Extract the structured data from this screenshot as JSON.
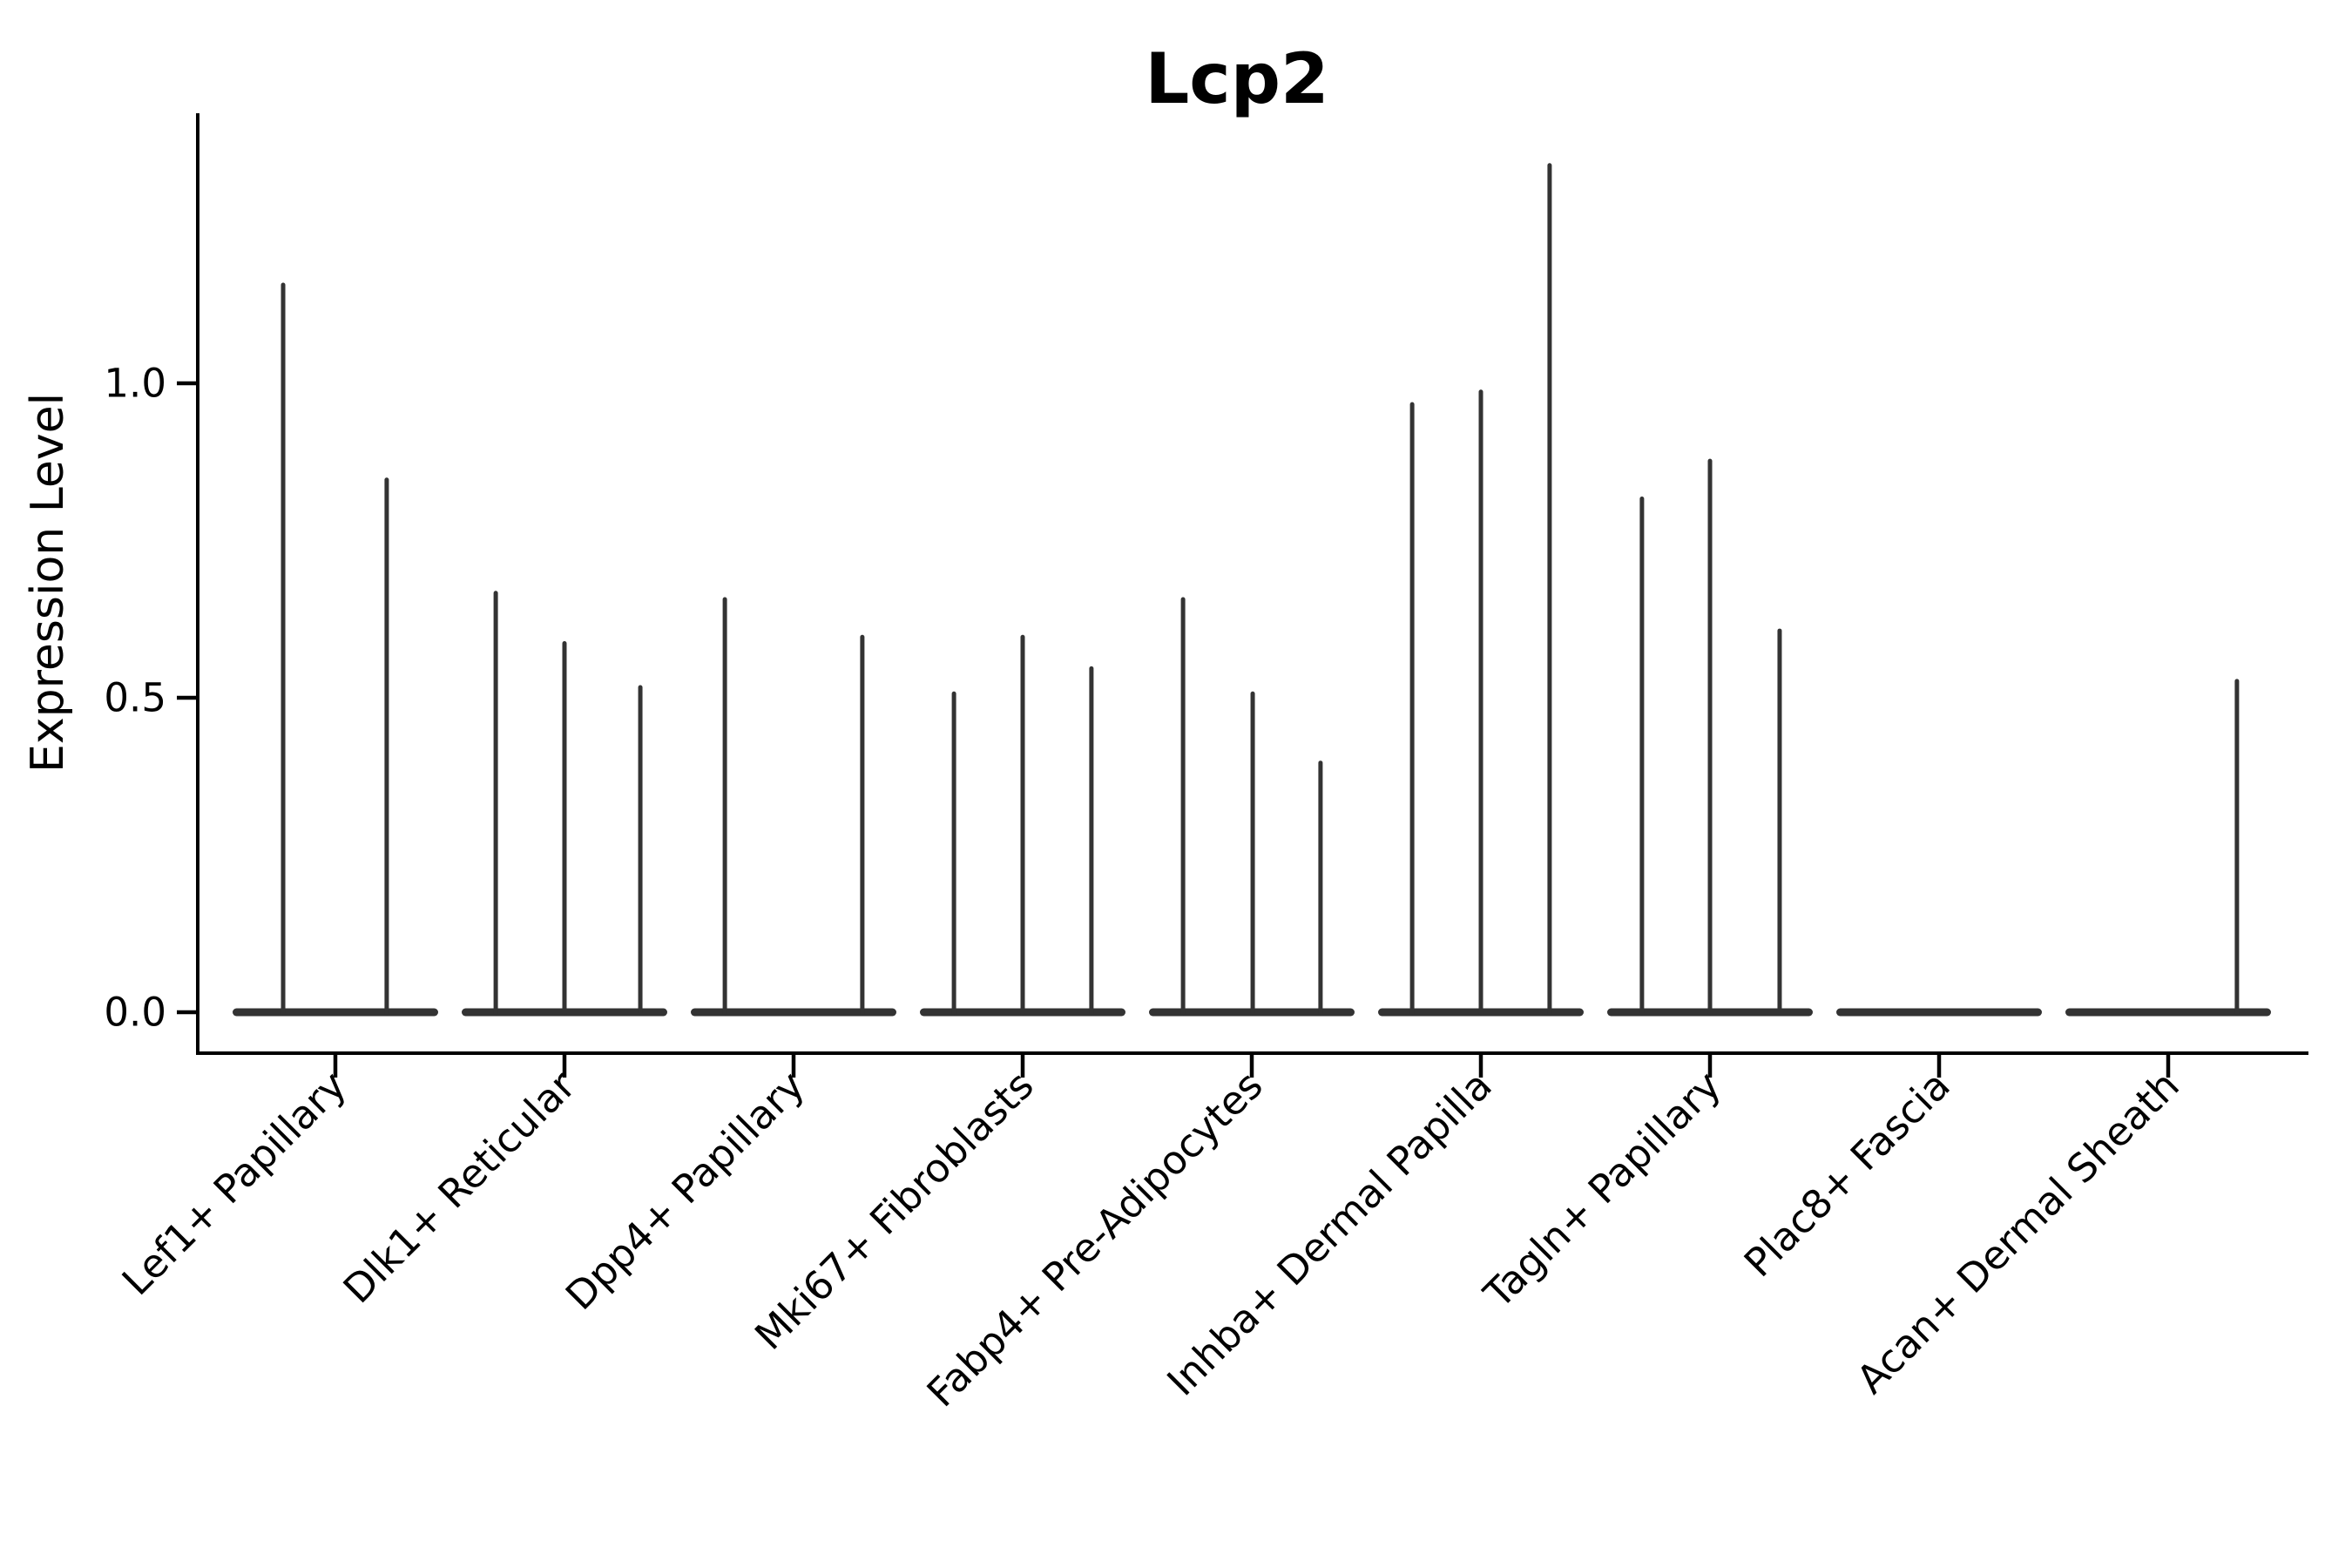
{
  "title": "Lcp2",
  "y_axis": {
    "label": "Expression Level",
    "tick_labels": [
      "0.0",
      "0.5",
      "1.0"
    ],
    "tick_values": [
      0.0,
      0.5,
      1.0
    ]
  },
  "colors": {
    "violin": "#333333",
    "axis": "#000000",
    "text": "#000000",
    "background": "#ffffff"
  },
  "chart_data": {
    "type": "violin",
    "title": "Lcp2",
    "xlabel": "",
    "ylabel": "Expression Level",
    "ylim": [
      0,
      1.43
    ],
    "yticks": [
      0.0,
      0.5,
      1.0
    ],
    "grid": false,
    "legend": null,
    "violin_width": 0.9,
    "categories": [
      "Lef1+ Papillary",
      "Dlk1+ Reticular",
      "Dpp4+ Papillary",
      "Mki67+ Fibroblasts",
      "Fabp4+ Pre-Adipocytes",
      "Inhba+ Dermal Papilla",
      "Tagln+ Papillary",
      "Plac8+ Fascia",
      "Acan+ Dermal Sheath"
    ],
    "series": [
      {
        "name": "Lef1+ Papillary",
        "baseline_value": 0.0,
        "spikes": [
          {
            "offset": -0.228,
            "value": 1.16
          },
          {
            "offset": 0.224,
            "value": 0.85
          }
        ]
      },
      {
        "name": "Dlk1+ Reticular",
        "baseline_value": 0.0,
        "spikes": [
          {
            "offset": -0.3,
            "value": 0.67
          },
          {
            "offset": 0.0,
            "value": 0.59
          },
          {
            "offset": 0.331,
            "value": 0.52
          }
        ]
      },
      {
        "name": "Dpp4+ Papillary",
        "baseline_value": 0.0,
        "spikes": [
          {
            "offset": -0.3,
            "value": 0.66
          },
          {
            "offset": 0.3,
            "value": 0.6
          }
        ]
      },
      {
        "name": "Mki67+ Fibroblasts",
        "baseline_value": 0.0,
        "spikes": [
          {
            "offset": -0.3,
            "value": 0.51
          },
          {
            "offset": 0.0,
            "value": 0.6
          },
          {
            "offset": 0.3,
            "value": 0.55
          }
        ]
      },
      {
        "name": "Fabp4+ Pre-Adipocytes",
        "baseline_value": 0.0,
        "spikes": [
          {
            "offset": -0.3,
            "value": 0.66
          },
          {
            "offset": 0.004,
            "value": 0.51
          },
          {
            "offset": 0.3,
            "value": 0.4
          }
        ]
      },
      {
        "name": "Inhba+ Dermal Papilla",
        "baseline_value": 0.0,
        "spikes": [
          {
            "offset": -0.3,
            "value": 0.97
          },
          {
            "offset": 0.0,
            "value": 0.99
          },
          {
            "offset": 0.3,
            "value": 1.35
          }
        ]
      },
      {
        "name": "Tagln+ Papillary",
        "baseline_value": 0.0,
        "spikes": [
          {
            "offset": -0.297,
            "value": 0.82
          },
          {
            "offset": 0.0,
            "value": 0.88
          },
          {
            "offset": 0.304,
            "value": 0.61
          }
        ]
      },
      {
        "name": "Plac8+ Fascia",
        "baseline_value": 0.0,
        "spikes": []
      },
      {
        "name": "Acan+ Dermal Sheath",
        "baseline_value": 0.0,
        "spikes": [
          {
            "offset": 0.3,
            "value": 0.53
          }
        ]
      }
    ]
  }
}
